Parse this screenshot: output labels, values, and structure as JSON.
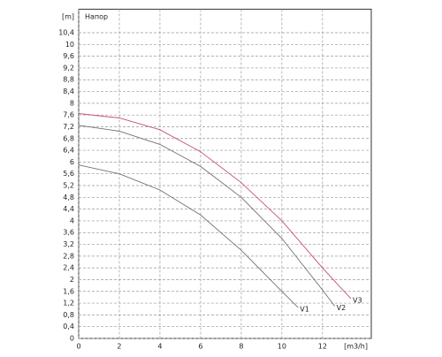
{
  "chart_data": {
    "type": "line",
    "title": "Напор",
    "y_label": "[m]",
    "x_label": "[m3/h]",
    "xlim": [
      0,
      14.4
    ],
    "ylim": [
      0,
      11.2
    ],
    "xticks": [
      0,
      2,
      4,
      6,
      8,
      10,
      12
    ],
    "yticks": [
      0,
      {
        "value": 0.4,
        "label": "0,4"
      },
      {
        "value": 0.8,
        "label": "0,8"
      },
      {
        "value": 1.2,
        "label": "1,2"
      },
      {
        "value": 1.6,
        "label": "1,6"
      },
      2,
      {
        "value": 2.4,
        "label": "2,4"
      },
      {
        "value": 2.8,
        "label": "2,8"
      },
      {
        "value": 3.2,
        "label": "3,2"
      },
      {
        "value": 3.6,
        "label": "3,6"
      },
      4,
      {
        "value": 4.4,
        "label": "4,4"
      },
      {
        "value": 4.8,
        "label": "4,8"
      },
      {
        "value": 5.2,
        "label": "5,2"
      },
      {
        "value": 5.6,
        "label": "5,6"
      },
      6,
      {
        "value": 6.4,
        "label": "6,4"
      },
      {
        "value": 6.8,
        "label": "6,8"
      },
      {
        "value": 7.2,
        "label": "7,2"
      },
      {
        "value": 7.6,
        "label": "7,6"
      },
      8,
      {
        "value": 8.4,
        "label": "8,4"
      },
      {
        "value": 8.8,
        "label": "8,8"
      },
      {
        "value": 9.2,
        "label": "9,2"
      },
      {
        "value": 9.6,
        "label": "9,6"
      },
      10,
      {
        "value": 10.4,
        "label": "10,4"
      }
    ],
    "grid": true,
    "series": [
      {
        "name": "V1",
        "color": "#707070",
        "x": [
          0,
          2,
          4,
          6,
          8,
          10,
          10.8
        ],
        "values": [
          5.9,
          5.6,
          5.05,
          4.2,
          3.0,
          1.6,
          1.05
        ]
      },
      {
        "name": "V2",
        "color": "#707070",
        "x": [
          0,
          2,
          4,
          6,
          8,
          10,
          12,
          12.6
        ],
        "values": [
          7.25,
          7.05,
          6.6,
          5.85,
          4.8,
          3.4,
          1.65,
          1.1
        ]
      },
      {
        "name": "V3",
        "color": "#c8506a",
        "x": [
          0,
          2,
          4,
          6,
          8,
          10,
          12,
          13.4
        ],
        "values": [
          7.65,
          7.5,
          7.1,
          6.35,
          5.3,
          4.0,
          2.4,
          1.35
        ]
      }
    ]
  }
}
